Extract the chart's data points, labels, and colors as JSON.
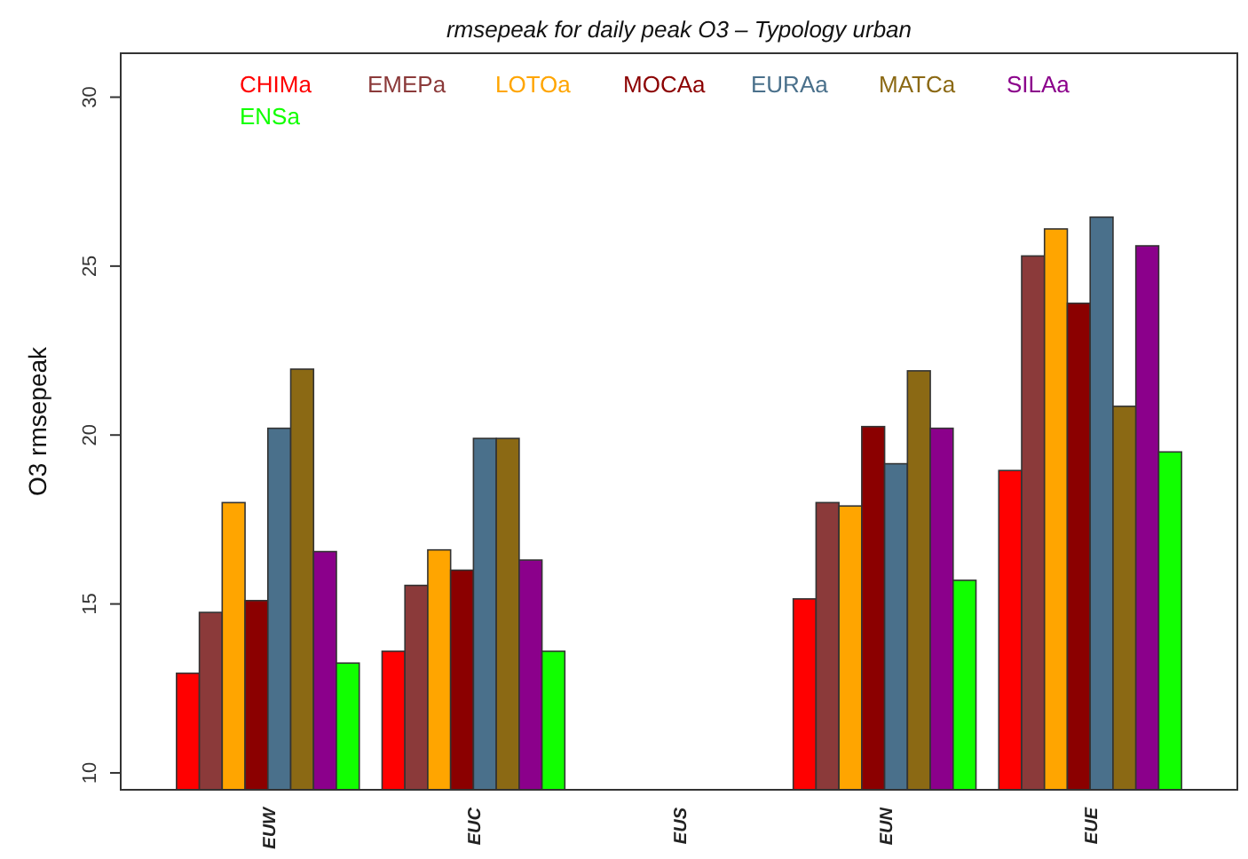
{
  "chart_data": {
    "type": "bar",
    "title": "rmsepeak  for daily  peak O3 – Typology urban",
    "ylabel": "O3 rmsepeak",
    "categories": [
      "EUW",
      "EUC",
      "EUS",
      "EUN",
      "EUE"
    ],
    "series": [
      {
        "name": "CHIMa",
        "color": "#ff0000",
        "values": [
          12.95,
          13.6,
          null,
          15.15,
          18.95
        ]
      },
      {
        "name": "EMEPa",
        "color": "#8b3a3a",
        "values": [
          14.75,
          15.55,
          null,
          18.0,
          25.3
        ]
      },
      {
        "name": "LOTOa",
        "color": "#ffa500",
        "values": [
          18.0,
          16.6,
          null,
          17.9,
          26.1
        ]
      },
      {
        "name": "MOCAa",
        "color": "#8b0000",
        "values": [
          15.1,
          16.0,
          null,
          20.25,
          23.9
        ]
      },
      {
        "name": "EURAa",
        "color": "#4a708b",
        "values": [
          20.2,
          19.9,
          null,
          19.15,
          26.45
        ]
      },
      {
        "name": "MATCa",
        "color": "#8b6914",
        "values": [
          21.95,
          19.9,
          null,
          21.9,
          20.85
        ]
      },
      {
        "name": "SILAa",
        "color": "#8b008b",
        "values": [
          16.55,
          16.3,
          null,
          20.2,
          25.6
        ]
      },
      {
        "name": "ENSa",
        "color": "#11ff00",
        "values": [
          13.25,
          13.6,
          null,
          15.7,
          19.5
        ]
      }
    ],
    "ylim": [
      9.5,
      31.3
    ],
    "yticks": [
      10,
      15,
      20,
      25,
      30
    ],
    "grid": false,
    "legend": "top"
  }
}
